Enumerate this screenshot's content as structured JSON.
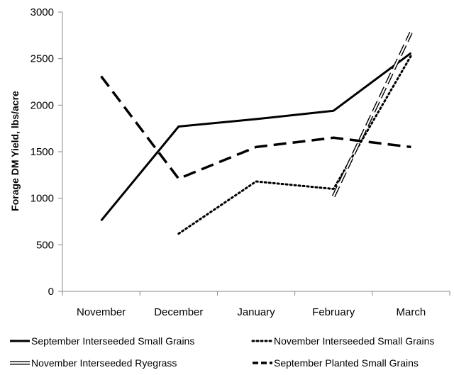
{
  "chart_data": {
    "type": "line",
    "title": "",
    "xlabel": "",
    "ylabel": "Forage DM Yield, lbs/acre",
    "categories": [
      "November",
      "December",
      "January",
      "February",
      "March"
    ],
    "ylim": [
      0,
      3000
    ],
    "yticks": [
      0,
      500,
      1000,
      1500,
      2000,
      2500,
      3000
    ],
    "grid": false,
    "legend_position": "bottom",
    "series": [
      {
        "name": "September Interseeded Small Grains",
        "style": "solid",
        "color": "#000000",
        "values": [
          760,
          1770,
          1850,
          1940,
          2560
        ]
      },
      {
        "name": "November Interseeded Small Grains",
        "style": "dotted",
        "color": "#000000",
        "values": [
          null,
          620,
          1180,
          1100,
          2530
        ]
      },
      {
        "name": "November Interseeded Ryegrass",
        "style": "double",
        "color": "#000000",
        "values": [
          null,
          null,
          null,
          1020,
          2780
        ]
      },
      {
        "name": "September Planted Small Grains",
        "style": "dashed",
        "color": "#000000",
        "values": [
          2310,
          1210,
          1550,
          1650,
          1550
        ]
      }
    ]
  }
}
